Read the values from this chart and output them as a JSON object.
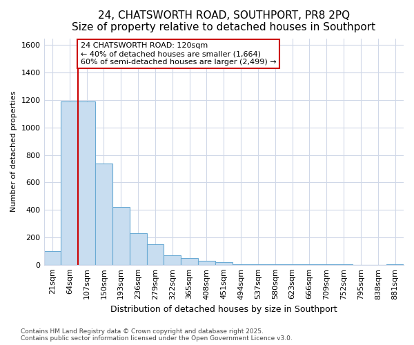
{
  "title": "24, CHATSWORTH ROAD, SOUTHPORT, PR8 2PQ",
  "subtitle": "Size of property relative to detached houses in Southport",
  "xlabel": "Distribution of detached houses by size in Southport",
  "ylabel": "Number of detached properties",
  "categories": [
    "21sqm",
    "64sqm",
    "107sqm",
    "150sqm",
    "193sqm",
    "236sqm",
    "279sqm",
    "322sqm",
    "365sqm",
    "408sqm",
    "451sqm",
    "494sqm",
    "537sqm",
    "580sqm",
    "623sqm",
    "666sqm",
    "709sqm",
    "752sqm",
    "795sqm",
    "838sqm",
    "881sqm"
  ],
  "values": [
    100,
    1190,
    1190,
    740,
    420,
    230,
    150,
    70,
    50,
    30,
    20,
    5,
    5,
    3,
    2,
    1,
    1,
    1,
    0,
    0,
    1
  ],
  "bar_color": "#c8ddf0",
  "bar_edge_color": "#6aaad4",
  "vline_x": 2,
  "vline_color": "#cc0000",
  "annotation_title": "24 CHATSWORTH ROAD: 120sqm",
  "annotation_line2": "← 40% of detached houses are smaller (1,664)",
  "annotation_line3": "60% of semi-detached houses are larger (2,499) →",
  "annotation_box_color": "#ffffff",
  "annotation_box_edge": "#cc0000",
  "ylim": [
    0,
    1650
  ],
  "yticks": [
    0,
    200,
    400,
    600,
    800,
    1000,
    1200,
    1400,
    1600
  ],
  "background_color": "#ffffff",
  "plot_background": "#ffffff",
  "grid_color": "#d0d8e8",
  "footer_line1": "Contains HM Land Registry data © Crown copyright and database right 2025.",
  "footer_line2": "Contains public sector information licensed under the Open Government Licence v3.0.",
  "title_fontsize": 11,
  "subtitle_fontsize": 9,
  "xlabel_fontsize": 9,
  "ylabel_fontsize": 8,
  "tick_fontsize": 8,
  "footer_fontsize": 6.5,
  "annotation_fontsize": 8
}
